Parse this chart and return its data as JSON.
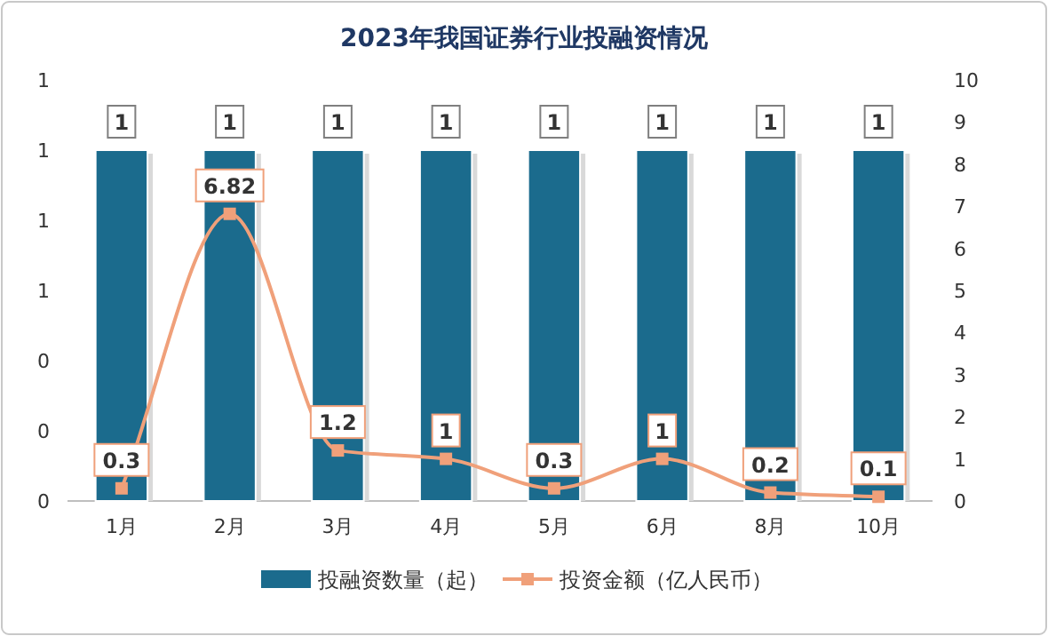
{
  "chart_data": {
    "type": "bar",
    "title": "2023年我国证券行业投融资情况",
    "categories": [
      "1月",
      "2月",
      "3月",
      "4月",
      "5月",
      "6月",
      "8月",
      "10月"
    ],
    "series": [
      {
        "name": "投融资数量（起）",
        "color": "#1b6b8d",
        "values": [
          1,
          1,
          1,
          1,
          1,
          1,
          1,
          1
        ]
      },
      {
        "name": "投资金额（亿人民币）",
        "type": "line",
        "axis": "y2",
        "color": "#f0a07a",
        "values": [
          0.3,
          6.82,
          1.2,
          1,
          0.3,
          1,
          0.2,
          0.1
        ]
      }
    ],
    "ylim": [
      0,
      1.2
    ],
    "yticks": [
      {
        "value": 0,
        "label": "0"
      },
      {
        "value": 0.2,
        "label": "0"
      },
      {
        "value": 0.4,
        "label": "0"
      },
      {
        "value": 0.6,
        "label": "1"
      },
      {
        "value": 0.8,
        "label": "1"
      },
      {
        "value": 1,
        "label": "1"
      },
      {
        "value": 1.2,
        "label": "1"
      }
    ],
    "y2lim": [
      0,
      10
    ],
    "y2ticks": [
      0,
      1,
      2,
      3,
      4,
      5,
      6,
      7,
      8,
      9,
      10
    ],
    "marker": "square",
    "data_labels": true,
    "legend": "bottom"
  }
}
